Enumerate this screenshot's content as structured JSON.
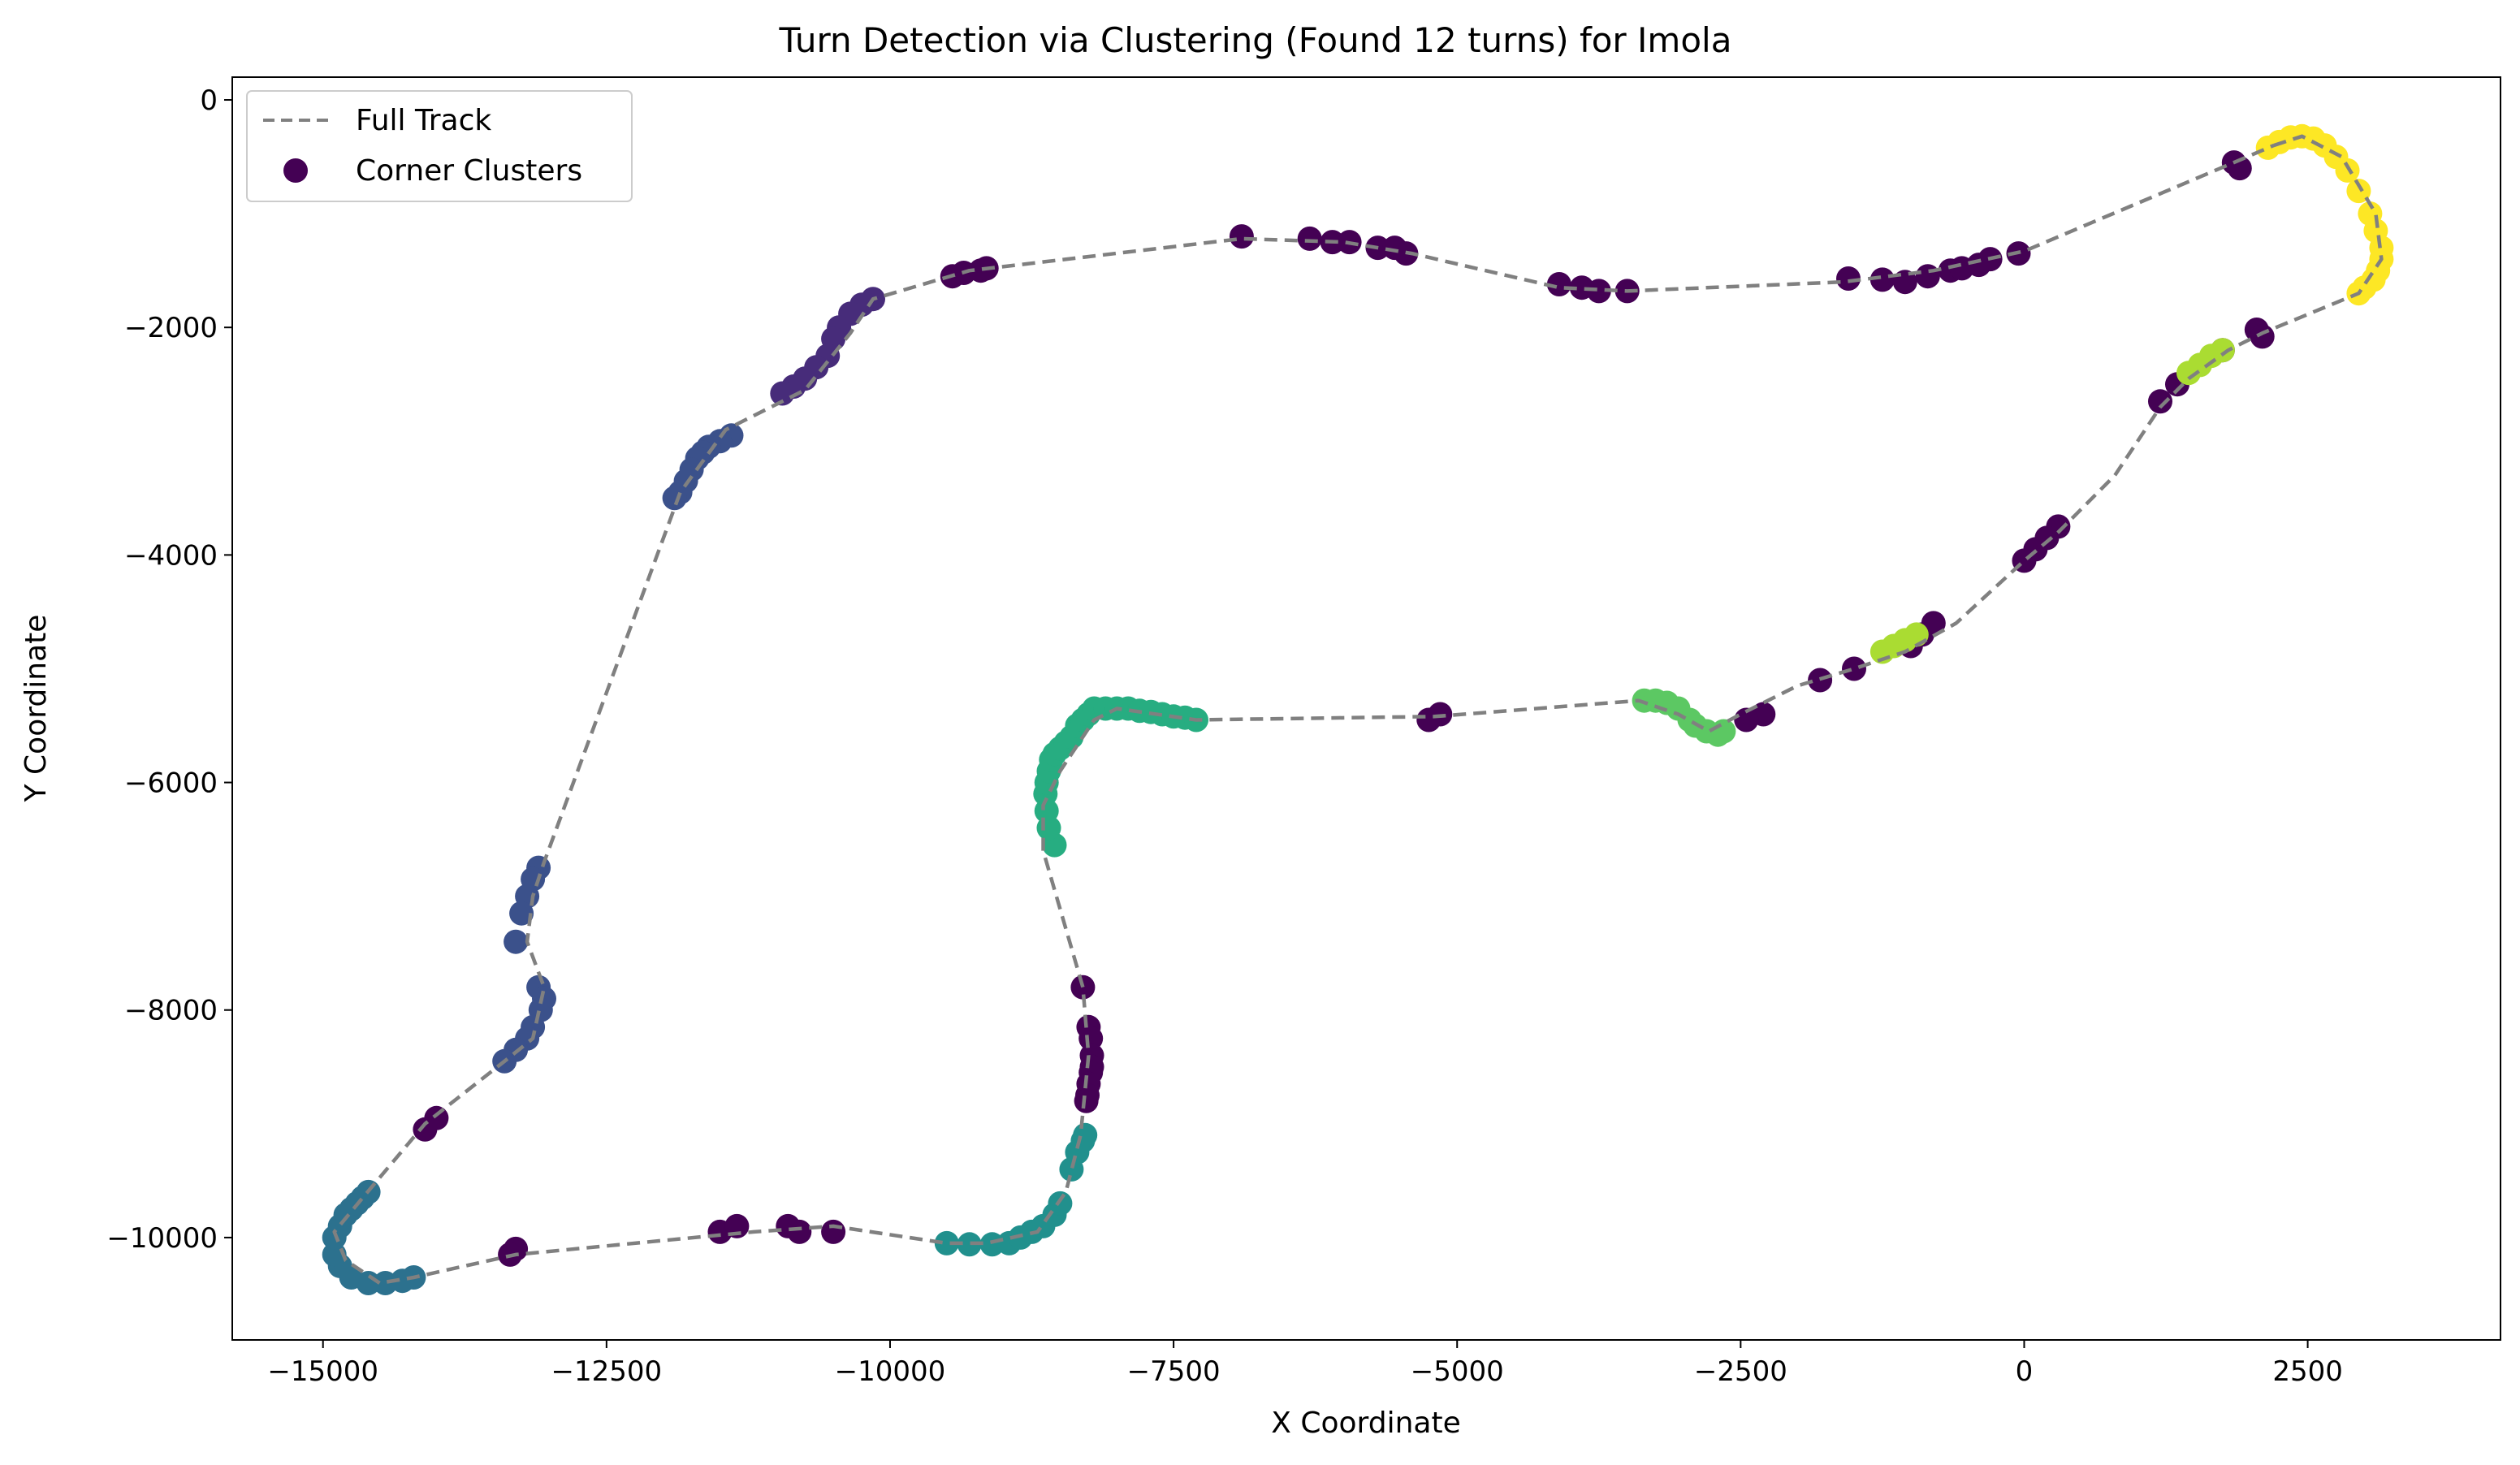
{
  "chart_data": {
    "type": "scatter",
    "title": "Turn Detection via Clustering (Found 12 turns) for Imola",
    "xlabel": "X Coordinate",
    "ylabel": "Y Coordinate",
    "xlim": [
      -15800,
      4200
    ],
    "ylim": [
      -10900,
      200
    ],
    "xticks": [
      -15000,
      -12500,
      -10000,
      -7500,
      -5000,
      -2500,
      0,
      2500
    ],
    "xtick_labels": [
      "−15000",
      "−12500",
      "−10000",
      "−7500",
      "−5000",
      "−2500",
      "0",
      "2500"
    ],
    "yticks": [
      0,
      -2000,
      -4000,
      -6000,
      -8000,
      -10000
    ],
    "ytick_labels": [
      "0",
      "−2000",
      "−4000",
      "−6000",
      "−8000",
      "−10000"
    ],
    "grid": false,
    "legend_position": "upper-left",
    "legend": [
      {
        "label": "Full Track",
        "style": "dashed-line",
        "color": "#808080"
      },
      {
        "label": "Corner Clusters",
        "style": "marker",
        "color": "#440154"
      }
    ],
    "track": {
      "name": "Full Track",
      "color": "#808080",
      "x": [
        2200,
        2450,
        2800,
        3100,
        3150,
        2950,
        2100,
        1800,
        1450,
        1200,
        800,
        300,
        0,
        -600,
        -1050,
        -1500,
        -2000,
        -2500,
        -2780,
        -3050,
        -3400,
        -5200,
        -7300,
        -8000,
        -8200,
        -8500,
        -8650,
        -8650,
        -8300,
        -8250,
        -8320,
        -8450,
        -8700,
        -9150,
        -9500,
        -10500,
        -11200,
        -13300,
        -14200,
        -14500,
        -14800,
        -14900,
        -14650,
        -14100,
        -13400,
        -13150,
        -13050,
        -13200,
        -13150,
        -13050,
        -11850,
        -11450,
        -10750,
        -10350,
        -10150,
        -9300,
        -6900,
        -6000,
        -5400,
        -4100,
        -3500,
        -1600,
        -800,
        0,
        1850,
        2200
      ],
      "y": [
        -400,
        -320,
        -500,
        -1000,
        -1400,
        -1700,
        -2050,
        -2200,
        -2450,
        -2700,
        -3300,
        -3800,
        -4050,
        -4600,
        -4850,
        -5000,
        -5150,
        -5400,
        -5550,
        -5400,
        -5280,
        -5420,
        -5450,
        -5350,
        -5450,
        -5900,
        -6200,
        -6600,
        -7800,
        -8400,
        -9100,
        -9600,
        -9950,
        -10050,
        -10050,
        -9900,
        -9950,
        -10150,
        -10350,
        -10400,
        -10200,
        -9950,
        -9650,
        -9000,
        -8450,
        -8250,
        -7800,
        -7400,
        -7000,
        -6700,
        -3450,
        -2900,
        -2550,
        -2050,
        -1750,
        -1500,
        -1220,
        -1250,
        -1350,
        -1650,
        -1680,
        -1600,
        -1500,
        -1330,
        -550,
        -400
      ]
    },
    "series": [
      {
        "cluster": 0,
        "color": "#440154",
        "x": [
          1850,
          1900,
          2050,
          2100,
          1750,
          1200,
          1350,
          300,
          200,
          100,
          0,
          -800,
          -900,
          -1000,
          -1500,
          -1800,
          -2300,
          -2450,
          -5150,
          -5250,
          -8300,
          -8250,
          -8230,
          -8220,
          -8220,
          -8230,
          -8250,
          -8260,
          -8270,
          -13300,
          -13350,
          -14000,
          -14100,
          -11500,
          -11350,
          -10900,
          -10800,
          -10500,
          -6900,
          -6300,
          -6100,
          -5950,
          -5700,
          -5550,
          -5450,
          -4100,
          -3900,
          -3750,
          -3500,
          -1550,
          -1250,
          -1050,
          -850,
          -650,
          -550,
          -400,
          -300,
          -50,
          -9450,
          -9350,
          -9200,
          -9150
        ],
        "y": [
          -550,
          -600,
          -2020,
          -2080,
          -2200,
          -2650,
          -2500,
          -3750,
          -3850,
          -3950,
          -4050,
          -4600,
          -4700,
          -4800,
          -5000,
          -5100,
          -5400,
          -5450,
          -5400,
          -5450,
          -7800,
          -8150,
          -8250,
          -8400,
          -8500,
          -8550,
          -8650,
          -8750,
          -8800,
          -10100,
          -10150,
          -8950,
          -9050,
          -9950,
          -9900,
          -9900,
          -9950,
          -9950,
          -1200,
          -1220,
          -1250,
          -1250,
          -1300,
          -1300,
          -1350,
          -1620,
          -1650,
          -1680,
          -1680,
          -1570,
          -1580,
          -1600,
          -1550,
          -1500,
          -1480,
          -1450,
          -1400,
          -1350,
          -1550,
          -1520,
          -1500,
          -1480
        ]
      },
      {
        "cluster": 1,
        "color": "#472c7a",
        "x": [
          -10150,
          -10250,
          -10350,
          -10450,
          -10500,
          -10550,
          -10650,
          -10750,
          -10850,
          -10950
        ],
        "y": [
          -1750,
          -1800,
          -1880,
          -2000,
          -2100,
          -2250,
          -2350,
          -2450,
          -2520,
          -2580
        ]
      },
      {
        "cluster": 2,
        "color": "#3b518b",
        "x": [
          -11400,
          -11500,
          -11600,
          -11650,
          -11700,
          -11750,
          -11800,
          -11850,
          -11900,
          -13100,
          -13150,
          -13200,
          -13250,
          -13300,
          -13100,
          -13050,
          -13080,
          -13150,
          -13200,
          -13300,
          -13400
        ],
        "y": [
          -2950,
          -3000,
          -3050,
          -3100,
          -3150,
          -3250,
          -3350,
          -3450,
          -3500,
          -6750,
          -6850,
          -7000,
          -7150,
          -7400,
          -7800,
          -7900,
          -8000,
          -8150,
          -8250,
          -8350,
          -8450
        ]
      },
      {
        "cluster": 3,
        "color": "#2c718e",
        "x": [
          -14200,
          -14300,
          -14450,
          -14600,
          -14750,
          -14850,
          -14900,
          -14900,
          -14850,
          -14800,
          -14750,
          -14700,
          -14650,
          -14600
        ],
        "y": [
          -10350,
          -10380,
          -10400,
          -10400,
          -10350,
          -10250,
          -10150,
          -10000,
          -9900,
          -9800,
          -9750,
          -9700,
          -9650,
          -9600
        ]
      },
      {
        "cluster": 4,
        "color": "#21908d",
        "x": [
          -9500,
          -9300,
          -9100,
          -8950,
          -8850,
          -8750,
          -8650,
          -8550,
          -8500,
          -8400,
          -8350,
          -8300,
          -8280
        ],
        "y": [
          -10050,
          -10060,
          -10060,
          -10050,
          -10000,
          -9950,
          -9900,
          -9800,
          -9700,
          -9400,
          -9250,
          -9150,
          -9100
        ]
      },
      {
        "cluster": 5,
        "color": "#27ad81",
        "x": [
          -8550,
          -8600,
          -8620,
          -8630,
          -8620,
          -8600,
          -8580,
          -8550,
          -8500,
          -8450,
          -8400,
          -8350,
          -8300,
          -8250,
          -8200,
          -8100,
          -8000,
          -7900,
          -7800,
          -7700,
          -7600,
          -7500,
          -7400,
          -7300
        ],
        "y": [
          -6550,
          -6400,
          -6250,
          -6100,
          -6000,
          -5900,
          -5800,
          -5750,
          -5700,
          -5650,
          -5600,
          -5500,
          -5450,
          -5400,
          -5350,
          -5350,
          -5350,
          -5350,
          -5370,
          -5380,
          -5400,
          -5420,
          -5430,
          -5450
        ]
      },
      {
        "cluster": 6,
        "color": "#5cc863",
        "x": [
          -3350,
          -3250,
          -3150,
          -3050,
          -2950,
          -2900,
          -2800,
          -2700,
          -2650
        ],
        "y": [
          -5280,
          -5280,
          -5300,
          -5350,
          -5450,
          -5500,
          -5550,
          -5580,
          -5550
        ]
      },
      {
        "cluster": 7,
        "color": "#aadc32",
        "x": [
          -1250,
          -1150,
          -1050,
          -950,
          1450,
          1550,
          1650,
          1750
        ],
        "y": [
          -4850,
          -4800,
          -4750,
          -4700,
          -2400,
          -2330,
          -2250,
          -2200
        ]
      },
      {
        "cluster": 8,
        "color": "#fde725",
        "x": [
          2150,
          2250,
          2350,
          2450,
          2550,
          2650,
          2750,
          2850,
          2950,
          3050,
          3100,
          3150,
          3150,
          3120,
          3080,
          3000,
          2950
        ],
        "y": [
          -420,
          -370,
          -330,
          -320,
          -340,
          -400,
          -500,
          -620,
          -800,
          -1000,
          -1150,
          -1300,
          -1400,
          -1500,
          -1580,
          -1650,
          -1700
        ]
      }
    ]
  }
}
